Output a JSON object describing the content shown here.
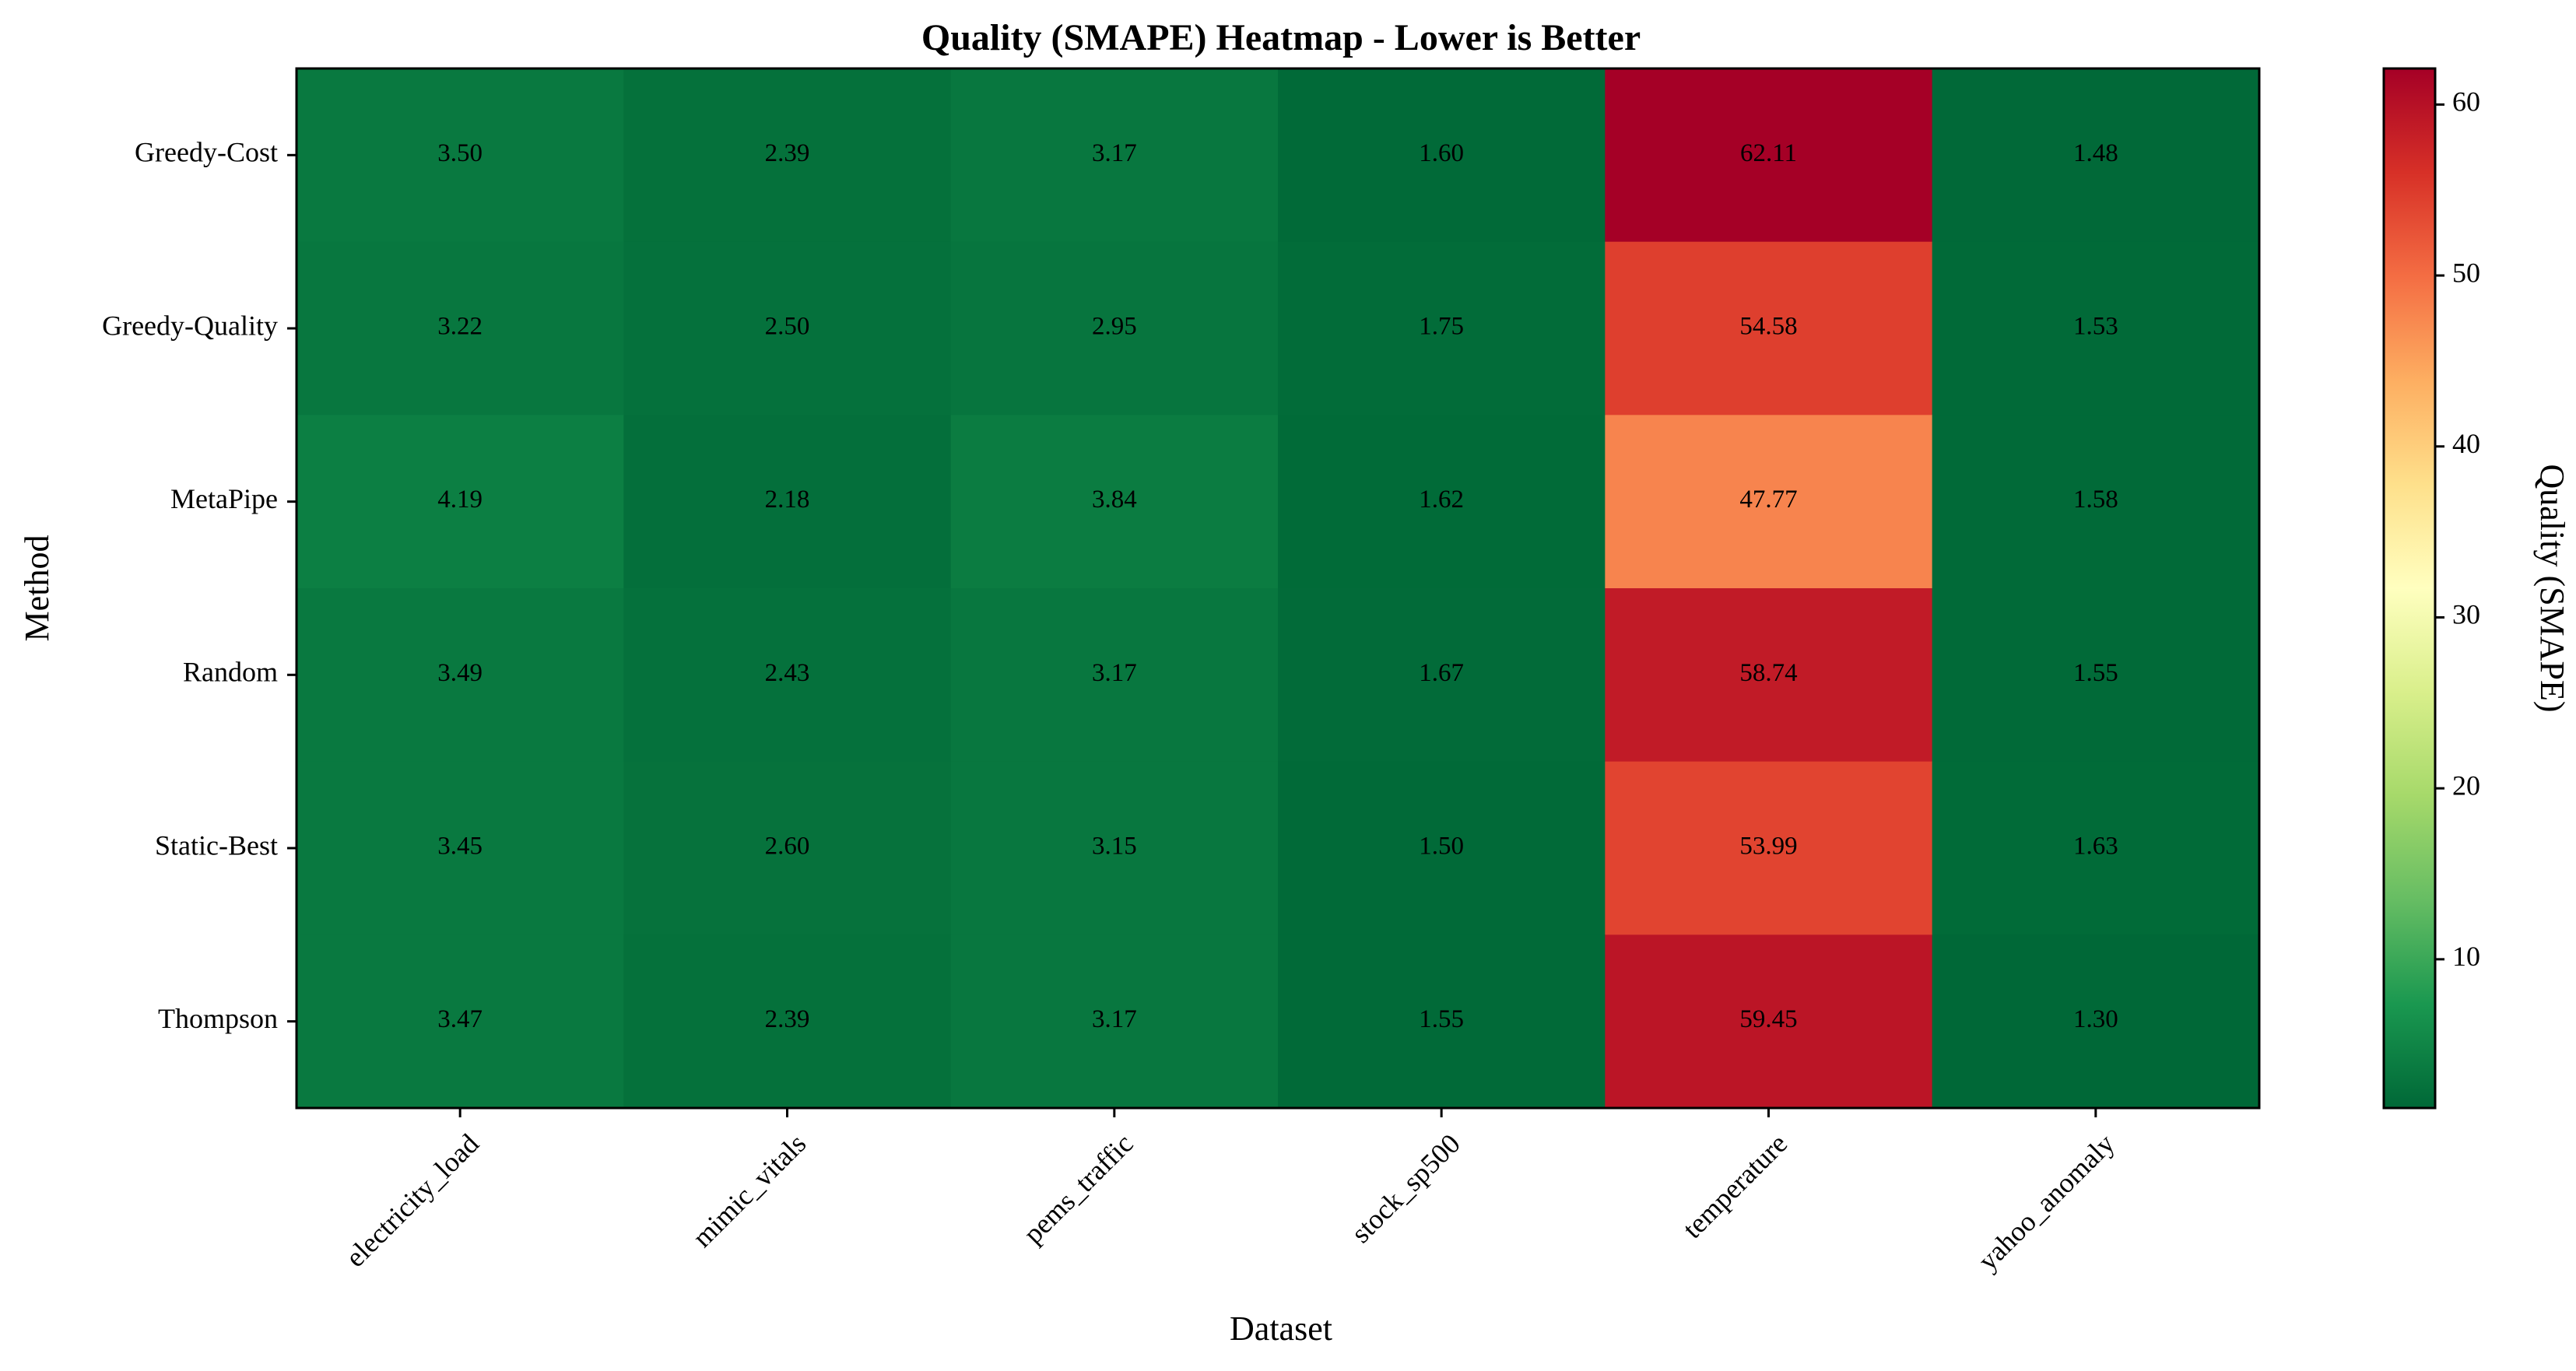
{
  "chart_data": {
    "type": "heatmap",
    "title": "Quality (SMAPE) Heatmap - Lower is Better",
    "xlabel": "Dataset",
    "ylabel": "Method",
    "colorbar_label": "Quality (SMAPE)",
    "colormap": "RdYlGn_r",
    "color_range": [
      1.3,
      62.11
    ],
    "colorbar_ticks": [
      "10",
      "20",
      "30",
      "40",
      "50",
      "60"
    ],
    "columns": [
      "electricity_load",
      "mimic_vitals",
      "pems_traffic",
      "stock_sp500",
      "temperature",
      "yahoo_anomaly"
    ],
    "rows": [
      "Greedy-Cost",
      "Greedy-Quality",
      "MetaPipe",
      "Random",
      "Static-Best",
      "Thompson"
    ],
    "values": [
      [
        3.5,
        2.39,
        3.17,
        1.6,
        62.11,
        1.48
      ],
      [
        3.22,
        2.5,
        2.95,
        1.75,
        54.58,
        1.53
      ],
      [
        4.19,
        2.18,
        3.84,
        1.62,
        47.77,
        1.58
      ],
      [
        3.49,
        2.43,
        3.17,
        1.67,
        58.74,
        1.55
      ],
      [
        3.45,
        2.6,
        3.15,
        1.5,
        53.99,
        1.63
      ],
      [
        3.47,
        2.39,
        3.17,
        1.55,
        59.45,
        1.3
      ]
    ],
    "value_labels": [
      [
        "3.50",
        "2.39",
        "3.17",
        "1.60",
        "62.11",
        "1.48"
      ],
      [
        "3.22",
        "2.50",
        "2.95",
        "1.75",
        "54.58",
        "1.53"
      ],
      [
        "4.19",
        "2.18",
        "3.84",
        "1.62",
        "47.77",
        "1.58"
      ],
      [
        "3.49",
        "2.43",
        "3.17",
        "1.67",
        "58.74",
        "1.55"
      ],
      [
        "3.45",
        "2.60",
        "3.15",
        "1.50",
        "53.99",
        "1.63"
      ],
      [
        "3.47",
        "2.39",
        "3.17",
        "1.55",
        "59.45",
        "1.30"
      ]
    ]
  }
}
